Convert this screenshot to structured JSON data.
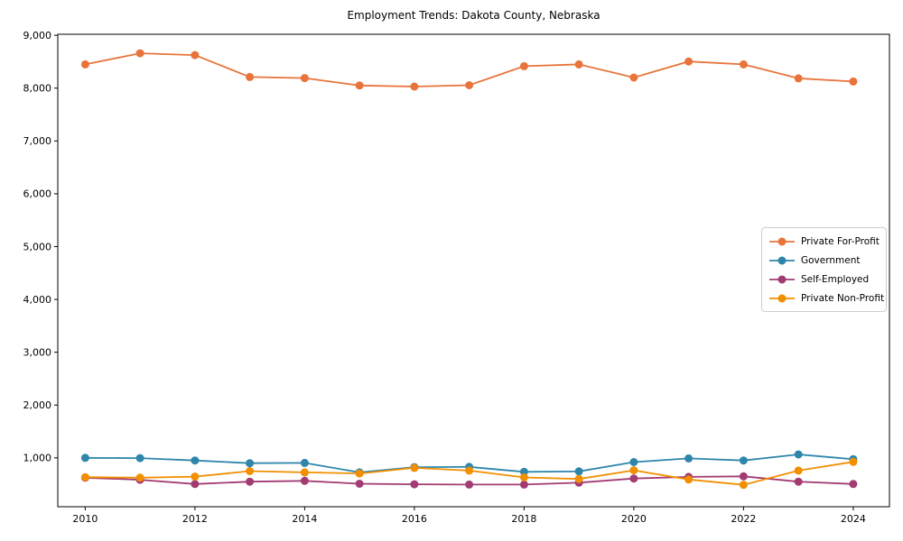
{
  "figure": {
    "background": "#ffffff",
    "text_color": "#000000",
    "axis_color": "#000000"
  },
  "chart_data": {
    "type": "line",
    "title": "Employment Trends: Dakota County, Nebraska",
    "xlabel": "",
    "ylabel": "",
    "grid": false,
    "legend_position": "center-right",
    "xlim": [
      2009.5,
      2024.66
    ],
    "ylim": [
      75,
      9020
    ],
    "x": [
      2010,
      2011,
      2012,
      2013,
      2014,
      2015,
      2016,
      2017,
      2018,
      2019,
      2020,
      2021,
      2022,
      2023,
      2024
    ],
    "x_ticks": [
      2010,
      2012,
      2014,
      2016,
      2018,
      2020,
      2022,
      2024
    ],
    "x_tick_labels": [
      "2010",
      "2012",
      "2014",
      "2016",
      "2018",
      "2020",
      "2022",
      "2024"
    ],
    "y_ticks": [
      1000,
      2000,
      3000,
      4000,
      5000,
      6000,
      7000,
      8000,
      9000
    ],
    "y_tick_labels": [
      "1,000",
      "2,000",
      "3,000",
      "4,000",
      "5,000",
      "6,000",
      "7,000",
      "8,000",
      "9,000"
    ],
    "series": [
      {
        "name": "Private For-Profit",
        "color": "#E8743B",
        "values": [
          8450,
          8660,
          8625,
          8210,
          8190,
          8050,
          8030,
          8055,
          8415,
          8450,
          8200,
          8505,
          8450,
          8185,
          8125
        ]
      },
      {
        "name": "Government",
        "color": "#2E86AB",
        "values": [
          1000,
          995,
          950,
          900,
          905,
          725,
          825,
          830,
          735,
          745,
          920,
          990,
          950,
          1065,
          975
        ]
      },
      {
        "name": "Self-Employed",
        "color": "#A23B72",
        "values": [
          625,
          585,
          505,
          550,
          565,
          510,
          500,
          495,
          495,
          530,
          610,
          640,
          650,
          550,
          505
        ]
      },
      {
        "name": "Private Non-Profit",
        "color": "#F18F01",
        "values": [
          635,
          625,
          645,
          750,
          725,
          705,
          810,
          760,
          630,
          600,
          765,
          590,
          490,
          760,
          925
        ]
      }
    ]
  }
}
